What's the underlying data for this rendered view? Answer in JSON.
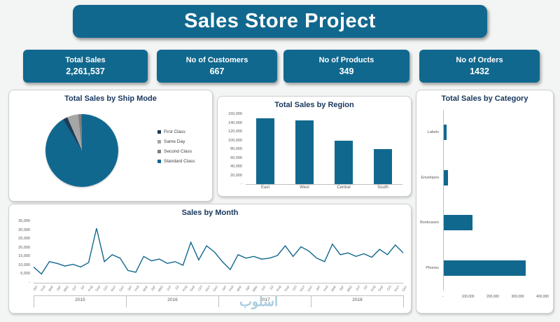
{
  "page": {
    "title": "Sales Store Project",
    "watermark": "اسلوب"
  },
  "palette": {
    "primary": "#11688E",
    "title_text": "#17375e",
    "axis_text": "#595959",
    "panel_border": "#cfcfcf"
  },
  "kpis": [
    {
      "label": "Total Sales",
      "value": "2,261,537"
    },
    {
      "label": "No of Customers",
      "value": "667"
    },
    {
      "label": "No of Products",
      "value": "349"
    },
    {
      "label": "No of Orders",
      "value": "1432"
    }
  ],
  "chart_data": [
    {
      "id": "ship_mode_pie",
      "type": "pie",
      "title": "Total Sales by Ship Mode",
      "legend_position": "right",
      "start_angle_deg": -31,
      "slices": [
        {
          "label": "First Class",
          "value": 2,
          "color": "#1f3b57"
        },
        {
          "label": "Same Day",
          "value": 5,
          "color": "#a6a6a6"
        },
        {
          "label": "Second Class",
          "value": 1.5,
          "color": "#7f7f7f"
        },
        {
          "label": "Standard Class",
          "value": 91.5,
          "color": "#11688E"
        }
      ]
    },
    {
      "id": "region_bar",
      "type": "bar",
      "title": "Total Sales by Region",
      "categories": [
        "East",
        "West",
        "Central",
        "South"
      ],
      "values": [
        150000,
        146000,
        100000,
        80000
      ],
      "ylim": [
        0,
        160000
      ],
      "ytick_labels": [
        "-",
        "20,000",
        "40,000",
        "60,000",
        "80,000",
        "100,000",
        "120,000",
        "140,000",
        "160,000"
      ],
      "bar_color": "#11688E",
      "grid": false
    },
    {
      "id": "category_bar",
      "type": "bar",
      "orientation": "horizontal",
      "title": "Total Sales by Category",
      "categories": [
        "Labels",
        "Envelopes",
        "Bookcases",
        "Phones"
      ],
      "values": [
        12000,
        16000,
        115000,
        330000
      ],
      "xlim": [
        0,
        400000
      ],
      "xtick_labels": [
        "-",
        "100,000",
        "200,000",
        "300,000",
        "400,000"
      ],
      "bar_color": "#11688E",
      "grid": false
    },
    {
      "id": "sales_by_month",
      "type": "line",
      "title": "Sales by Month",
      "years": [
        "2015",
        "2016",
        "2017",
        "2018"
      ],
      "months": [
        "Jan",
        "Feb",
        "Mar",
        "Apr",
        "May",
        "Jun",
        "Jul",
        "Aug",
        "Sep",
        "Oct",
        "Nov",
        "Dec"
      ],
      "values": [
        9000,
        5000,
        12000,
        11000,
        9500,
        10500,
        9000,
        11500,
        31000,
        12000,
        16000,
        14000,
        7000,
        6000,
        15000,
        12500,
        13500,
        11000,
        12000,
        10000,
        23000,
        13000,
        21000,
        17500,
        12000,
        7500,
        16000,
        14000,
        15000,
        13500,
        14000,
        15500,
        21000,
        15000,
        20500,
        18000,
        14000,
        12000,
        22000,
        16000,
        17000,
        15000,
        16500,
        14500,
        19000,
        16000,
        21500,
        17000
      ],
      "ylim": [
        0,
        35000
      ],
      "ytick_labels": [
        "-",
        "5,000",
        "10,000",
        "15,000",
        "20,000",
        "25,000",
        "30,000",
        "35,000"
      ],
      "line_color": "#11688E",
      "grid": false
    }
  ]
}
